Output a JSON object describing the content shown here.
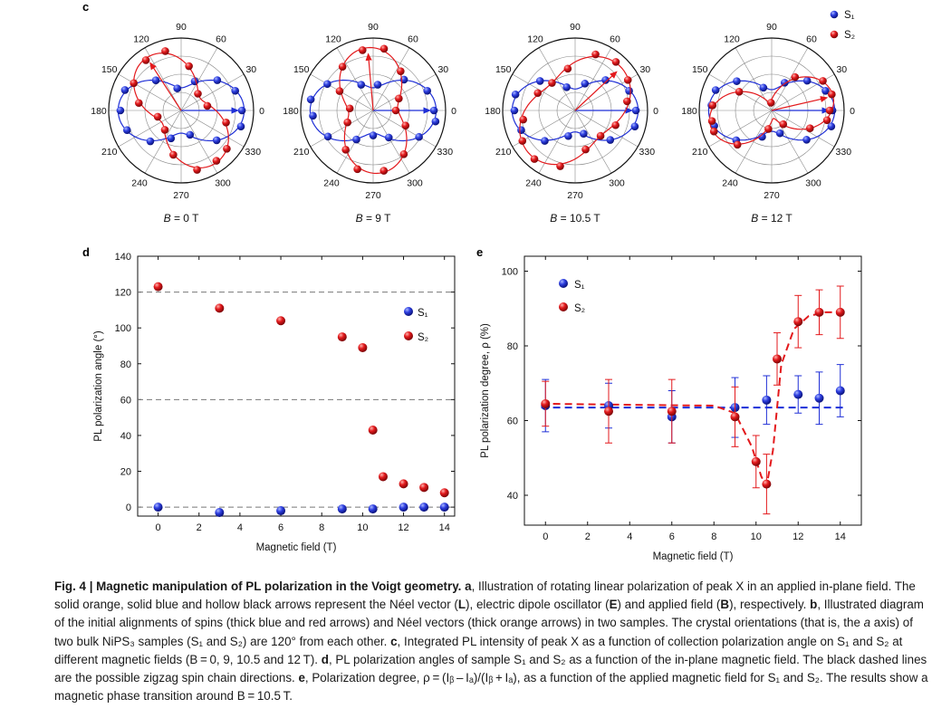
{
  "panel_labels": {
    "c": "c",
    "d": "d",
    "e": "e"
  },
  "polar_angles": [
    "0",
    "30",
    "60",
    "90",
    "120",
    "150",
    "180",
    "210",
    "240",
    "270",
    "300",
    "330"
  ],
  "colors": {
    "s1": "#1f2fd6",
    "s2": "#e3191c",
    "dash": "#1b2fd8",
    "grid": "#888888"
  },
  "polar_legend": {
    "s1": "S₁",
    "s2": "S₂"
  },
  "chart_data": [
    {
      "type": "scatter",
      "subtype": "polar",
      "panel": "c",
      "title": "B = 0 T",
      "series": [
        {
          "name": "S₁",
          "lobe_angle_deg": 0,
          "polarization_degree": 0.64,
          "points_deg": [
            0,
            20,
            40,
            65,
            100,
            130,
            160,
            180,
            200,
            225,
            250,
            290,
            320,
            345
          ]
        },
        {
          "name": "S₂",
          "lobe_angle_deg": 123,
          "polarization_degree": 0.64,
          "points_deg": [
            10,
            45,
            80,
            105,
            125,
            150,
            170,
            195,
            230,
            260,
            285,
            305,
            320,
            345
          ]
        }
      ]
    },
    {
      "type": "scatter",
      "subtype": "polar",
      "panel": "c",
      "title": "B = 9 T",
      "series": [
        {
          "name": "S₁",
          "lobe_angle_deg": 0,
          "polarization_degree": 0.64,
          "points_deg": [
            0,
            20,
            45,
            80,
            115,
            150,
            170,
            185,
            210,
            240,
            270,
            300,
            330,
            350
          ]
        },
        {
          "name": "S₂",
          "lobe_angle_deg": 95,
          "polarization_degree": 0.61,
          "points_deg": [
            0,
            25,
            55,
            80,
            100,
            125,
            150,
            175,
            205,
            235,
            255,
            280,
            305,
            335
          ]
        }
      ]
    },
    {
      "type": "scatter",
      "subtype": "polar",
      "panel": "c",
      "title": "B = 10.5 T",
      "series": [
        {
          "name": "S₁",
          "lobe_angle_deg": 0,
          "polarization_degree": 0.66,
          "points_deg": [
            0,
            20,
            45,
            70,
            110,
            140,
            165,
            180,
            200,
            225,
            255,
            290,
            320,
            345
          ]
        },
        {
          "name": "S₂",
          "lobe_angle_deg": 43,
          "polarization_degree": 0.43,
          "points_deg": [
            10,
            30,
            50,
            70,
            100,
            130,
            155,
            190,
            210,
            230,
            255,
            285,
            315,
            340
          ]
        }
      ]
    },
    {
      "type": "scatter",
      "subtype": "polar",
      "panel": "c",
      "title": "B = 12 T",
      "series": [
        {
          "name": "S₁",
          "lobe_angle_deg": 0,
          "polarization_degree": 0.67,
          "points_deg": [
            0,
            20,
            40,
            65,
            110,
            140,
            160,
            175,
            195,
            220,
            250,
            290,
            320,
            345
          ]
        },
        {
          "name": "S₂",
          "lobe_angle_deg": 13,
          "polarization_degree": 0.87,
          "points_deg": [
            0,
            15,
            30,
            55,
            95,
            150,
            175,
            190,
            200,
            225,
            260,
            310,
            335,
            350
          ]
        }
      ]
    },
    {
      "type": "scatter",
      "panel": "d",
      "xlabel": "Magnetic field (T)",
      "ylabel": "PL polarization angle (°)",
      "xlim": [
        -1,
        14.5
      ],
      "ylim": [
        -5,
        140
      ],
      "xticks": [
        0,
        2,
        4,
        6,
        8,
        10,
        12,
        14
      ],
      "yticks": [
        0,
        20,
        40,
        60,
        80,
        100,
        120,
        140
      ],
      "dashed_lines_y": [
        0,
        60,
        120
      ],
      "legend_position": "upper-right",
      "series": [
        {
          "name": "S₁",
          "x": [
            0,
            3,
            6,
            9,
            10.5,
            12,
            13,
            14
          ],
          "y": [
            0,
            -3,
            -2,
            -1,
            -1,
            0,
            0,
            0
          ]
        },
        {
          "name": "S₂",
          "x": [
            0,
            3,
            6,
            9,
            10,
            10.5,
            11,
            12,
            13,
            14
          ],
          "y": [
            123,
            111,
            104,
            95,
            89,
            43,
            17,
            13,
            11,
            8
          ]
        }
      ]
    },
    {
      "type": "scatter",
      "panel": "e",
      "xlabel": "Magnetic field (T)",
      "ylabel": "PL polarization degree, ρ (%)",
      "xlim": [
        -1,
        15
      ],
      "ylim": [
        32,
        104
      ],
      "xticks": [
        0,
        2,
        4,
        6,
        8,
        10,
        12,
        14
      ],
      "yticks": [
        40,
        60,
        80,
        100
      ],
      "legend_position": "upper-left",
      "series": [
        {
          "name": "S₁",
          "x": [
            0,
            3,
            6,
            9,
            10.5,
            12,
            13,
            14
          ],
          "y": [
            64,
            64,
            61,
            63.5,
            65.5,
            67,
            66,
            68
          ],
          "err": [
            7,
            6,
            7,
            8,
            6.5,
            5,
            7,
            7
          ]
        },
        {
          "name": "S₂",
          "x": [
            0,
            3,
            6,
            9,
            10,
            10.5,
            11,
            12,
            13,
            14
          ],
          "y": [
            64.5,
            62.5,
            62.5,
            61,
            49,
            43,
            76.5,
            86.5,
            89,
            89
          ],
          "err": [
            6,
            8.5,
            8.5,
            8,
            7,
            8,
            7,
            7,
            6,
            7
          ]
        }
      ],
      "dashed_fits": [
        {
          "series": "S₁",
          "y": 63.5
        },
        {
          "series": "S₂",
          "x": [
            -0.2,
            3,
            6,
            8,
            9,
            9.8,
            10.25,
            10.5,
            10.8,
            11.2,
            11.8,
            12.5,
            13.3,
            14
          ],
          "y": [
            64.5,
            64.3,
            64.1,
            64,
            62,
            53,
            45,
            42.5,
            52,
            75,
            84.5,
            88,
            89,
            89
          ]
        }
      ]
    }
  ],
  "caption": {
    "fig_label": "Fig. 4 | Magnetic manipulation of PL polarization in the Voigt geometry.",
    "a_label": "a",
    "a_text": ", Illustration of rotating linear polarization of peak X in an applied in-plane field. The solid orange, solid blue and hollow black arrows represent the Néel vector (",
    "L": "L",
    "mid1": "), electric dipole oscillator (",
    "E": "E",
    "mid2": ") and applied field (",
    "B": "B",
    "mid3": "), respectively.",
    "b_label": "b",
    "b_text": ", Illustrated diagram of the initial alignments of spins (thick blue and red arrows) and Néel vectors (thick orange arrows) in two samples. The crystal orientations (that is, the ",
    "a_axis": "a",
    "b_text2": " axis) of two bulk NiPS₃ samples (S₁ and S₂) are 120° from each other. ",
    "c_label": "c",
    "c_text": ", Integrated PL intensity of peak X as a function of collection polarization angle on S₁ and S₂ at different magnetic fields (B = 0, 9, 10.5 and 12 T). ",
    "d_label": "d",
    "d_text": ", PL polarization angles of sample S₁ and S₂ as a function of the in-plane magnetic field. The black dashed lines are the possible zigzag spin chain directions. ",
    "e_label": "e",
    "e_text": ", Polarization degree, ρ = (Iᵦ – Iₐ)/(Iᵦ + Iₐ), as a function of the applied magnetic field for S₁ and S₂. The results show a magnetic phase transition around B = 10.5 T."
  }
}
